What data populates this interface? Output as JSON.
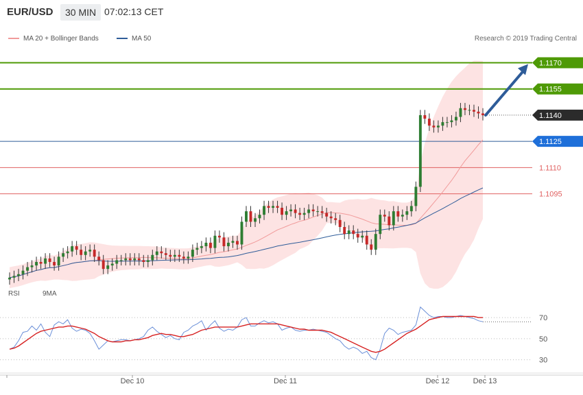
{
  "header": {
    "symbol": "EUR/USD",
    "interval": "30 MIN",
    "time": "07:02:13 CET"
  },
  "legend": {
    "bollinger": "MA 20 + Bollinger Bands",
    "ma50": "MA 50",
    "credit": "Research © 2019 Trading Central"
  },
  "rsi_legend": {
    "rsi": "RSI",
    "ma": "9MA"
  },
  "colors": {
    "bull_candle": "#2e7d32",
    "bear_candle": "#c62828",
    "bollinger_fill": "#fde3e3",
    "bollinger_ma": "#f19a9a",
    "ma50": "#2e5c99",
    "resistance": "#4e9a06",
    "support": "#2e5c99",
    "pivot_red": "#e06060",
    "current": "#333333",
    "rsi": "#6a8fd8",
    "rsi_ma": "#d62020",
    "arrow": "#2e5c99"
  },
  "chart_data": [
    {
      "type": "candlestick",
      "title": "",
      "ylim": [
        1.1045,
        1.118
      ],
      "xlabel": "",
      "ylabel": "",
      "x_ticks": [
        "Dec 10",
        "Dec 11",
        "Dec 12",
        "Dec 13"
      ],
      "levels": [
        {
          "value": 1.117,
          "label": "1.1170",
          "kind": "resistance"
        },
        {
          "value": 1.1155,
          "label": "1.1155",
          "kind": "resistance"
        },
        {
          "value": 1.114,
          "label": "1.1140",
          "kind": "current"
        },
        {
          "value": 1.1125,
          "label": "1.1125",
          "kind": "support"
        },
        {
          "value": 1.111,
          "label": "1.1110",
          "kind": "pivot"
        },
        {
          "value": 1.1095,
          "label": "1.1095",
          "kind": "pivot"
        }
      ],
      "projection": {
        "from": 1.114,
        "to": 1.117
      },
      "close_series": [
        1.1047,
        1.1048,
        1.1049,
        1.1051,
        1.1053,
        1.1054,
        1.1056,
        1.1055,
        1.1058,
        1.1056,
        1.1054,
        1.1059,
        1.1061,
        1.1062,
        1.1065,
        1.1063,
        1.106,
        1.1062,
        1.1063,
        1.1059,
        1.1057,
        1.1052,
        1.1054,
        1.1055,
        1.1057,
        1.1057,
        1.1058,
        1.1057,
        1.1058,
        1.1057,
        1.1056,
        1.1057,
        1.106,
        1.1062,
        1.1061,
        1.106,
        1.1059,
        1.106,
        1.1059,
        1.1058,
        1.1059,
        1.1063,
        1.1064,
        1.1065,
        1.1067,
        1.1064,
        1.1071,
        1.107,
        1.1065,
        1.1067,
        1.1068,
        1.1066,
        1.1079,
        1.1085,
        1.1079,
        1.1081,
        1.1083,
        1.1088,
        1.1087,
        1.1088,
        1.1087,
        1.1083,
        1.1085,
        1.1086,
        1.1084,
        1.1083,
        1.1084,
        1.1086,
        1.1085,
        1.1085,
        1.1084,
        1.1082,
        1.1081,
        1.108,
        1.1076,
        1.1072,
        1.1074,
        1.1072,
        1.107,
        1.1071,
        1.1066,
        1.1063,
        1.1072,
        1.1083,
        1.1082,
        1.1077,
        1.1085,
        1.1082,
        1.1083,
        1.1085,
        1.1088,
        1.1099,
        1.114,
        1.1138,
        1.1134,
        1.1133,
        1.1134,
        1.1136,
        1.1136,
        1.1137,
        1.1139,
        1.1144,
        1.1143,
        1.1143,
        1.1142,
        1.1141,
        1.114
      ]
    },
    {
      "type": "line",
      "title": "",
      "ylim": [
        20,
        85
      ],
      "y_ticks": [
        70,
        50,
        30
      ],
      "overbought": 66,
      "series": [
        {
          "name": "RSI",
          "values": [
            40,
            42,
            48,
            56,
            57,
            62,
            58,
            64,
            56,
            52,
            63,
            66,
            64,
            68,
            60,
            57,
            59,
            58,
            55,
            48,
            40,
            44,
            48,
            47,
            48,
            49,
            49,
            48,
            49,
            50,
            52,
            58,
            61,
            57,
            54,
            51,
            53,
            50,
            49,
            56,
            58,
            62,
            64,
            67,
            58,
            63,
            67,
            60,
            57,
            59,
            58,
            61,
            68,
            70,
            62,
            62,
            65,
            67,
            65,
            66,
            64,
            58,
            60,
            61,
            58,
            57,
            58,
            58,
            59,
            58,
            57,
            56,
            53,
            50,
            48,
            43,
            40,
            42,
            40,
            36,
            38,
            32,
            30,
            40,
            55,
            60,
            58,
            54,
            56,
            57,
            58,
            63,
            80,
            76,
            72,
            70,
            71,
            71,
            70,
            70,
            71,
            72,
            71,
            70,
            69,
            67,
            66
          ]
        },
        {
          "name": "9MA",
          "values": [
            40,
            41,
            43,
            46,
            49,
            52,
            55,
            57,
            58,
            59,
            60,
            61,
            61,
            62,
            62,
            61,
            60,
            59,
            57,
            55,
            52,
            50,
            48,
            47,
            47,
            47,
            48,
            48,
            49,
            49,
            50,
            51,
            53,
            54,
            55,
            54,
            54,
            53,
            52,
            52,
            53,
            54,
            56,
            58,
            59,
            60,
            61,
            61,
            61,
            61,
            61,
            61,
            62,
            63,
            64,
            64,
            64,
            64,
            64,
            64,
            64,
            63,
            62,
            61,
            60,
            59,
            59,
            58,
            58,
            58,
            58,
            57,
            56,
            54,
            52,
            50,
            48,
            46,
            44,
            42,
            40,
            38,
            37,
            38,
            40,
            43,
            46,
            49,
            52,
            55,
            57,
            59,
            62,
            65,
            68,
            69,
            70,
            71,
            71,
            71,
            71,
            71,
            71,
            71,
            71,
            70,
            70
          ]
        }
      ]
    }
  ]
}
